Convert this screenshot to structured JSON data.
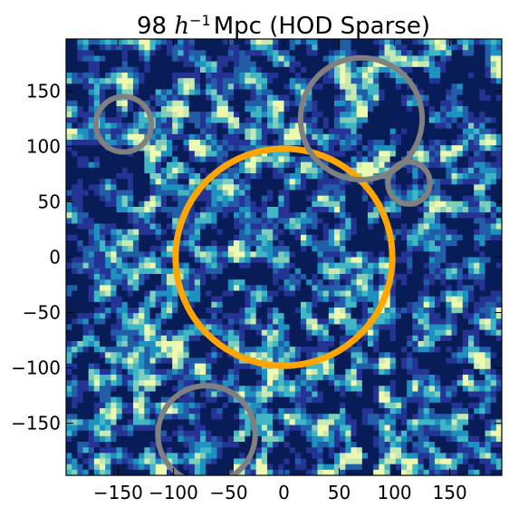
{
  "chart_data": {
    "type": "heatmap",
    "title": {
      "number": "98",
      "symbol": "h",
      "exponent": "−1",
      "rest": "Mpc (HOD Sparse)"
    },
    "xlabel": "",
    "ylabel": "",
    "xlim": [
      -197,
      197
    ],
    "ylim": [
      -197,
      197
    ],
    "xticks": [
      {
        "value": -150,
        "label": "−150"
      },
      {
        "value": -100,
        "label": "−100"
      },
      {
        "value": -50,
        "label": "−50"
      },
      {
        "value": 0,
        "label": "0"
      },
      {
        "value": 50,
        "label": "50"
      },
      {
        "value": 100,
        "label": "100"
      },
      {
        "value": 150,
        "label": "150"
      }
    ],
    "yticks": [
      {
        "value": 150,
        "label": "150"
      },
      {
        "value": 100,
        "label": "100"
      },
      {
        "value": 50,
        "label": "50"
      },
      {
        "value": 0,
        "label": "0"
      },
      {
        "value": -50,
        "label": "−50"
      },
      {
        "value": -100,
        "label": "−100"
      },
      {
        "value": -150,
        "label": "−150"
      }
    ],
    "grid": false,
    "colormap": [
      "#081d58",
      "#253494",
      "#225ea8",
      "#1d91c0",
      "#41b6c4",
      "#7fcdbb",
      "#c7e9b4",
      "#edf8b1"
    ],
    "circles": [
      {
        "role": "highlight",
        "cx": 0,
        "cy": 0,
        "r": 98,
        "color": "#ffa500"
      },
      {
        "role": "void",
        "cx": 70,
        "cy": 125,
        "r": 55,
        "color": "#808080"
      },
      {
        "role": "void",
        "cx": -145,
        "cy": 120,
        "r": 25,
        "color": "#808080"
      },
      {
        "role": "void",
        "cx": 113,
        "cy": 67,
        "r": 19,
        "color": "#808080"
      },
      {
        "role": "void",
        "cx": -70,
        "cy": -160,
        "r": 44,
        "color": "#808080"
      }
    ]
  }
}
